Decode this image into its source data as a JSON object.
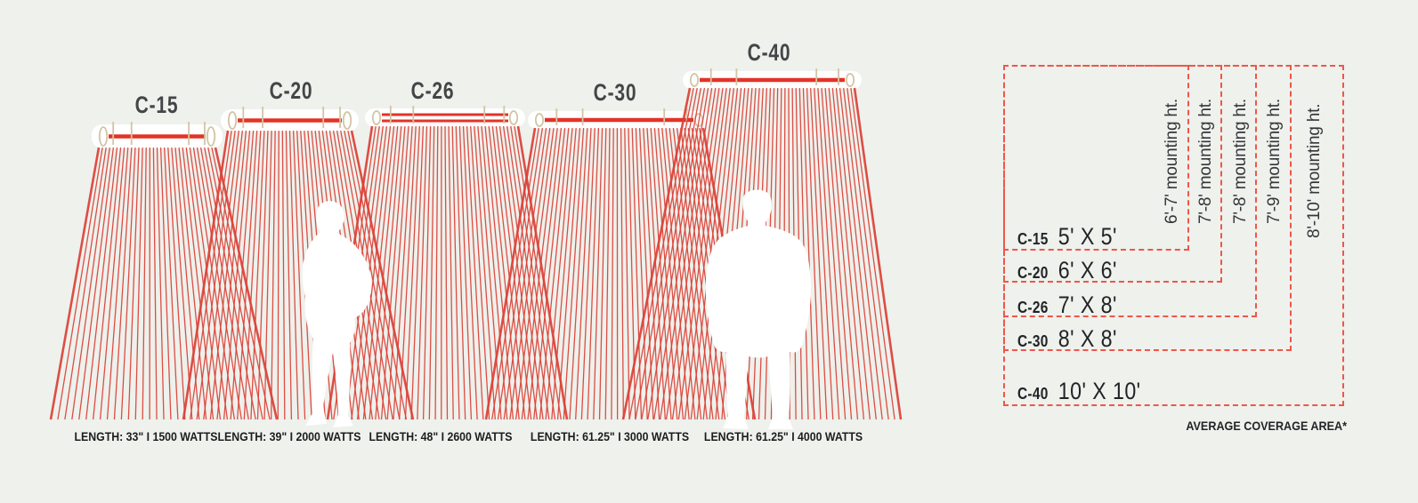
{
  "diagram": {
    "products": [
      {
        "model": "C-15",
        "spec": "LENGTH: 33\" I 1500 WATTS",
        "coverage": "5' X 5'",
        "mounting_height": "6'-7' mounting ht."
      },
      {
        "model": "C-20",
        "spec": "LENGTH: 39\" I 2000 WATTS",
        "coverage": "6' X 6'",
        "mounting_height": "7'-8' mounting ht."
      },
      {
        "model": "C-26",
        "spec": "LENGTH: 48\" I 2600 WATTS",
        "coverage": "7' X 8'",
        "mounting_height": "7'-8' mounting ht."
      },
      {
        "model": "C-30",
        "spec": "LENGTH: 61.25\" I 3000 WATTS",
        "coverage": "8' X 8'",
        "mounting_height": "7'-9' mounting ht."
      },
      {
        "model": "C-40",
        "spec": "LENGTH: 61.25\" I 4000 WATTS",
        "coverage": "10' X 10'",
        "mounting_height": "8'-10' mounting ht."
      }
    ],
    "footnote": "AVERAGE COVERAGE AREA*",
    "colors": {
      "background": "#eef1ec",
      "ray_red": "#dc4036",
      "bar_red": "#e23327",
      "dash_red": "#ef564a",
      "tan": "#d2c5a5",
      "ink": "#232327",
      "label_gray": "#454548",
      "white": "#ffffff"
    }
  }
}
